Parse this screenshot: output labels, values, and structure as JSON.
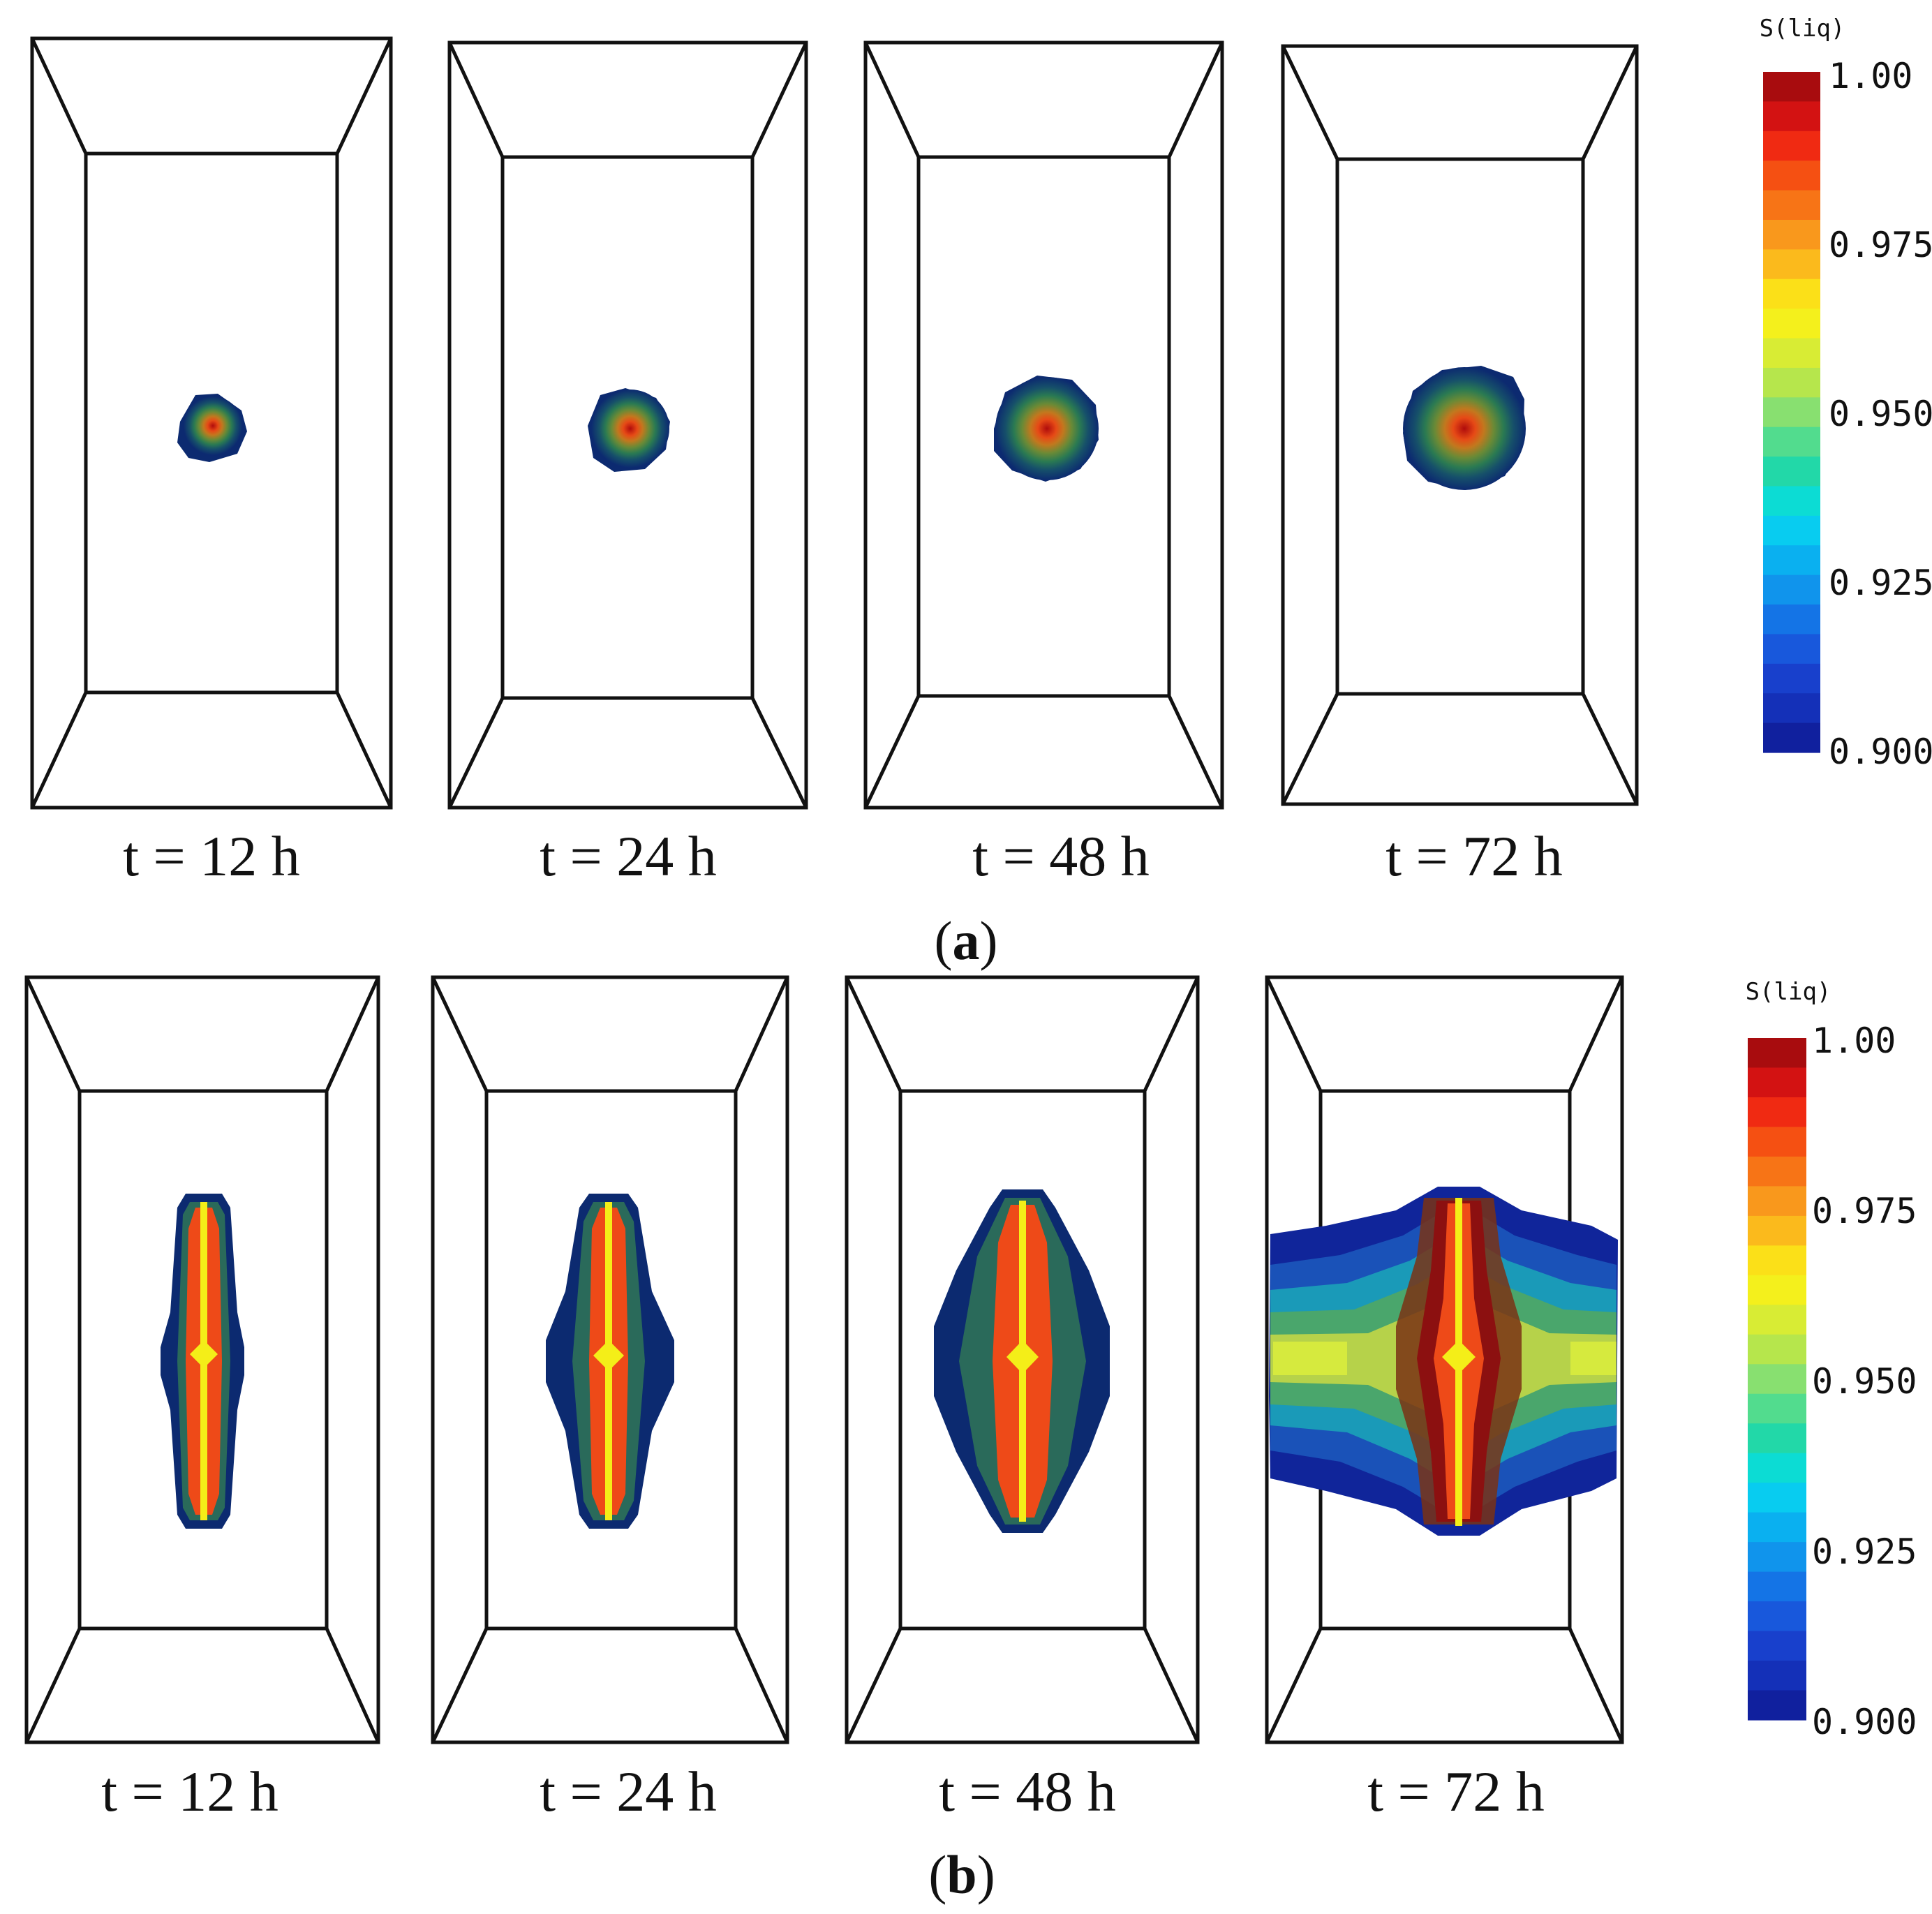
{
  "panels": [
    {
      "label": "a",
      "frames": [
        {
          "time_caption": "t = 12 h"
        },
        {
          "time_caption": "t = 24 h"
        },
        {
          "time_caption": "t = 48 h"
        },
        {
          "time_caption": "t = 72 h"
        }
      ],
      "colorbar": {
        "title": "S(liq)",
        "ticks": [
          "1.00",
          "0.975",
          "0.950",
          "0.925",
          "0.900"
        ]
      }
    },
    {
      "label": "b",
      "frames": [
        {
          "time_caption": "t = 12 h"
        },
        {
          "time_caption": "t = 24 h"
        },
        {
          "time_caption": "t = 48 h"
        },
        {
          "time_caption": "t = 72 h"
        }
      ],
      "colorbar": {
        "title": "S(liq)",
        "ticks": [
          "1.00",
          "0.975",
          "0.950",
          "0.925",
          "0.900"
        ]
      }
    }
  ],
  "colors": {
    "colorbar_steps": [
      "#a80c0e",
      "#d31212",
      "#f02a12",
      "#f55012",
      "#f77416",
      "#f9981c",
      "#fbba1c",
      "#fbe018",
      "#f4f01c",
      "#d8ec34",
      "#b6e64c",
      "#88e070",
      "#52dc8e",
      "#22d8a8",
      "#0cdcd4",
      "#08ccf0",
      "#0ab0f0",
      "#1094ec",
      "#1474e6",
      "#1858dc",
      "#1840cc",
      "#1430b8",
      "#10209e"
    ],
    "outline": "#111111"
  }
}
